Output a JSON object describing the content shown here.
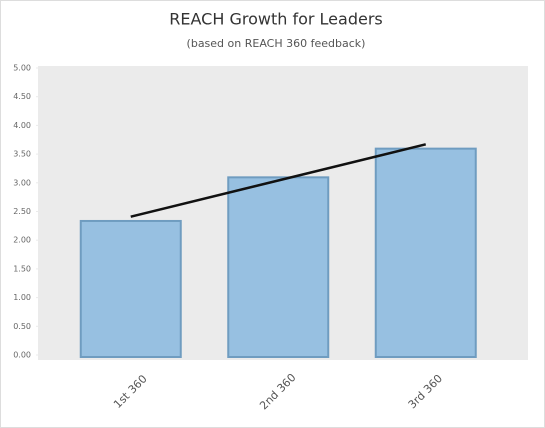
{
  "chart_data": {
    "type": "bar",
    "title": "REACH Growth for Leaders",
    "subtitle": "(based on REACH 360 feedback)",
    "categories": [
      "1st 360",
      "2nd 360",
      "3rd 360"
    ],
    "values": [
      2.37,
      3.13,
      3.63
    ],
    "color": "#97c0e1",
    "edge_color": "#6f9cc0",
    "trendline": {
      "start": 2.41,
      "end": 3.67,
      "color": "#111111"
    },
    "ylim": [
      0,
      5
    ],
    "yticks": [
      {
        "value": 0,
        "label": "0.00"
      },
      {
        "value": 0.5,
        "label": "0.50"
      },
      {
        "value": 1,
        "label": "1.00"
      },
      {
        "value": 1.5,
        "label": "1.50"
      },
      {
        "value": 2,
        "label": "2.00"
      },
      {
        "value": 2.5,
        "label": "2.50"
      },
      {
        "value": 3,
        "label": "3.00"
      },
      {
        "value": 3.5,
        "label": "3.50"
      },
      {
        "value": 4,
        "label": "4.00"
      },
      {
        "value": 4.5,
        "label": "4.50"
      },
      {
        "value": 5,
        "label": "5.00"
      }
    ]
  }
}
